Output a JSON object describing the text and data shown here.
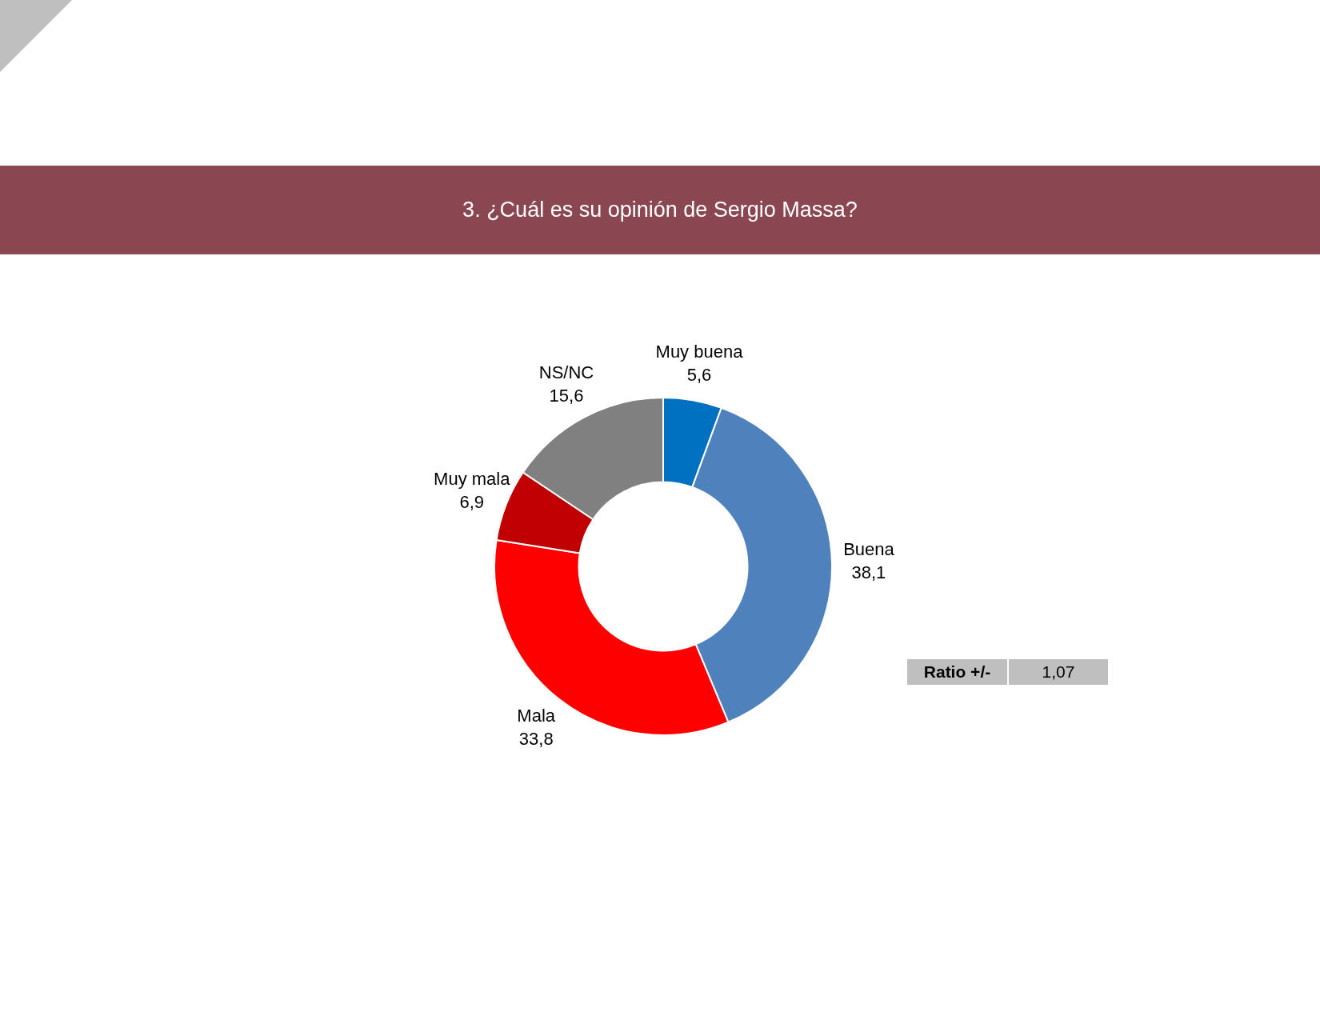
{
  "chart_data": {
    "type": "donut",
    "title": "3. ¿Cuál es su opinión de Sergio Massa?",
    "categories": [
      "Muy buena",
      "Buena",
      "Mala",
      "Muy mala",
      "NS/NC"
    ],
    "values": [
      5.6,
      38.1,
      33.8,
      6.9,
      15.6
    ],
    "colors": [
      "#0070c0",
      "#4f81bd",
      "#ff0000",
      "#c00000",
      "#808080"
    ],
    "value_labels": [
      "5,6",
      "38,1",
      "33,8",
      "6,9",
      "15,6"
    ],
    "annotations": [
      "Ratio +/-",
      "1,07"
    ]
  }
}
